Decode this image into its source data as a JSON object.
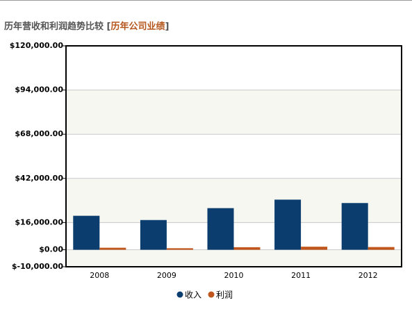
{
  "header": {
    "title": "历年营收和利润趋势比较",
    "brackets": [
      "[",
      "]"
    ],
    "link": "历年公司业绩"
  },
  "chart_data": {
    "type": "bar",
    "categories": [
      "2008",
      "2009",
      "2010",
      "2011",
      "2012"
    ],
    "series": [
      {
        "name": "收入",
        "color": "#0b3e6f",
        "values": [
          20000,
          17500,
          24500,
          29500,
          27500
        ]
      },
      {
        "name": "利润",
        "color": "#c0561b",
        "values": [
          1200,
          900,
          1500,
          1800,
          1600
        ]
      }
    ],
    "ylim": [
      -10000,
      120000
    ],
    "yticks": [
      {
        "value": -10000,
        "label": "$-10,000.00"
      },
      {
        "value": 0,
        "label": "$0.00"
      },
      {
        "value": 16000,
        "label": "$16,000.00"
      },
      {
        "value": 42000,
        "label": "$42,000.00"
      },
      {
        "value": 68000,
        "label": "$68,000.00"
      },
      {
        "value": 94000,
        "label": "$94,000.00"
      },
      {
        "value": 120000,
        "label": "$120,000.00"
      }
    ],
    "grid": true
  }
}
